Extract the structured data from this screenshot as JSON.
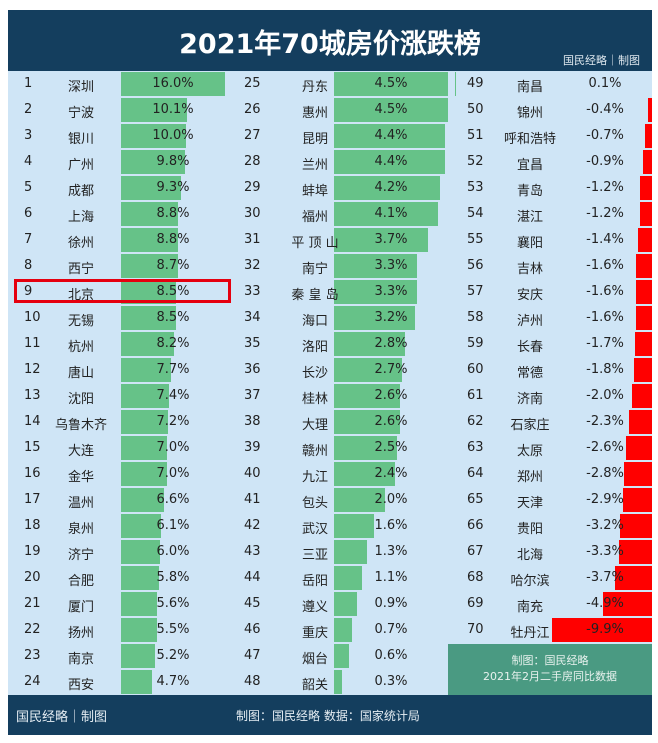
{
  "header": {
    "title": "2021年70城房价涨跌榜",
    "brand": "国民经略｜制图"
  },
  "footer": {
    "brand": "国民经略｜制图",
    "source": "制图：国民经略 数据：国家统计局"
  },
  "note": {
    "line1": "制图：国民经略",
    "line2": "2021年2月二手房同比数据"
  },
  "colors": {
    "positive": "#66c288",
    "negative": "#ff0000",
    "header": "#143e5e",
    "highlight": "#e5000f"
  },
  "highlight_rank": 9,
  "chart_data": {
    "type": "bar",
    "unit": "%",
    "rows": [
      {
        "rank": 1,
        "city": "深圳",
        "value": 16.0
      },
      {
        "rank": 2,
        "city": "宁波",
        "value": 10.1
      },
      {
        "rank": 3,
        "city": "银川",
        "value": 10.0
      },
      {
        "rank": 4,
        "city": "广州",
        "value": 9.8
      },
      {
        "rank": 5,
        "city": "成都",
        "value": 9.3
      },
      {
        "rank": 6,
        "city": "上海",
        "value": 8.8
      },
      {
        "rank": 7,
        "city": "徐州",
        "value": 8.8
      },
      {
        "rank": 8,
        "city": "西宁",
        "value": 8.7
      },
      {
        "rank": 9,
        "city": "北京",
        "value": 8.5
      },
      {
        "rank": 10,
        "city": "无锡",
        "value": 8.5
      },
      {
        "rank": 11,
        "city": "杭州",
        "value": 8.2
      },
      {
        "rank": 12,
        "city": "唐山",
        "value": 7.7
      },
      {
        "rank": 13,
        "city": "沈阳",
        "value": 7.4
      },
      {
        "rank": 14,
        "city": "乌鲁木齐",
        "value": 7.2
      },
      {
        "rank": 15,
        "city": "大连",
        "value": 7.0
      },
      {
        "rank": 16,
        "city": "金华",
        "value": 7.0
      },
      {
        "rank": 17,
        "city": "温州",
        "value": 6.6
      },
      {
        "rank": 18,
        "city": "泉州",
        "value": 6.1
      },
      {
        "rank": 19,
        "city": "济宁",
        "value": 6.0
      },
      {
        "rank": 20,
        "city": "合肥",
        "value": 5.8
      },
      {
        "rank": 21,
        "city": "厦门",
        "value": 5.6
      },
      {
        "rank": 22,
        "city": "扬州",
        "value": 5.5
      },
      {
        "rank": 23,
        "city": "南京",
        "value": 5.2
      },
      {
        "rank": 24,
        "city": "西安",
        "value": 4.7
      },
      {
        "rank": 25,
        "city": "丹东",
        "value": 4.5
      },
      {
        "rank": 26,
        "city": "惠州",
        "value": 4.5
      },
      {
        "rank": 27,
        "city": "昆明",
        "value": 4.4
      },
      {
        "rank": 28,
        "city": "兰州",
        "value": 4.4
      },
      {
        "rank": 29,
        "city": "蚌埠",
        "value": 4.2
      },
      {
        "rank": 30,
        "city": "福州",
        "value": 4.1
      },
      {
        "rank": 31,
        "city": "平 顶 山",
        "value": 3.7
      },
      {
        "rank": 32,
        "city": "南宁",
        "value": 3.3
      },
      {
        "rank": 33,
        "city": "秦 皇 岛",
        "value": 3.3
      },
      {
        "rank": 34,
        "city": "海口",
        "value": 3.2
      },
      {
        "rank": 35,
        "city": "洛阳",
        "value": 2.8
      },
      {
        "rank": 36,
        "city": "长沙",
        "value": 2.7
      },
      {
        "rank": 37,
        "city": "桂林",
        "value": 2.6
      },
      {
        "rank": 38,
        "city": "大理",
        "value": 2.6
      },
      {
        "rank": 39,
        "city": "赣州",
        "value": 2.5
      },
      {
        "rank": 40,
        "city": "九江",
        "value": 2.4
      },
      {
        "rank": 41,
        "city": "包头",
        "value": 2.0
      },
      {
        "rank": 42,
        "city": "武汉",
        "value": 1.6
      },
      {
        "rank": 43,
        "city": "三亚",
        "value": 1.3
      },
      {
        "rank": 44,
        "city": "岳阳",
        "value": 1.1
      },
      {
        "rank": 45,
        "city": "遵义",
        "value": 0.9
      },
      {
        "rank": 46,
        "city": "重庆",
        "value": 0.7
      },
      {
        "rank": 47,
        "city": "烟台",
        "value": 0.6
      },
      {
        "rank": 48,
        "city": "韶关",
        "value": 0.3
      },
      {
        "rank": 49,
        "city": "南昌",
        "value": 0.1
      },
      {
        "rank": 50,
        "city": "锦州",
        "value": -0.4
      },
      {
        "rank": 51,
        "city": "呼和浩特",
        "value": -0.7
      },
      {
        "rank": 52,
        "city": "宜昌",
        "value": -0.9
      },
      {
        "rank": 53,
        "city": "青岛",
        "value": -1.2
      },
      {
        "rank": 54,
        "city": "湛江",
        "value": -1.2
      },
      {
        "rank": 55,
        "city": "襄阳",
        "value": -1.4
      },
      {
        "rank": 56,
        "city": "吉林",
        "value": -1.6
      },
      {
        "rank": 57,
        "city": "安庆",
        "value": -1.6
      },
      {
        "rank": 58,
        "city": "泸州",
        "value": -1.6
      },
      {
        "rank": 59,
        "city": "长春",
        "value": -1.7
      },
      {
        "rank": 60,
        "city": "常德",
        "value": -1.8
      },
      {
        "rank": 61,
        "city": "济南",
        "value": -2.0
      },
      {
        "rank": 62,
        "city": "石家庄",
        "value": -2.3
      },
      {
        "rank": 63,
        "city": "太原",
        "value": -2.6
      },
      {
        "rank": 64,
        "city": "郑州",
        "value": -2.8
      },
      {
        "rank": 65,
        "city": "天津",
        "value": -2.9
      },
      {
        "rank": 66,
        "city": "贵阳",
        "value": -3.2
      },
      {
        "rank": 67,
        "city": "北海",
        "value": -3.3
      },
      {
        "rank": 68,
        "city": "哈尔滨",
        "value": -3.7
      },
      {
        "rank": 69,
        "city": "南充",
        "value": -4.9
      },
      {
        "rank": 70,
        "city": "牡丹江",
        "value": -9.9
      }
    ]
  }
}
